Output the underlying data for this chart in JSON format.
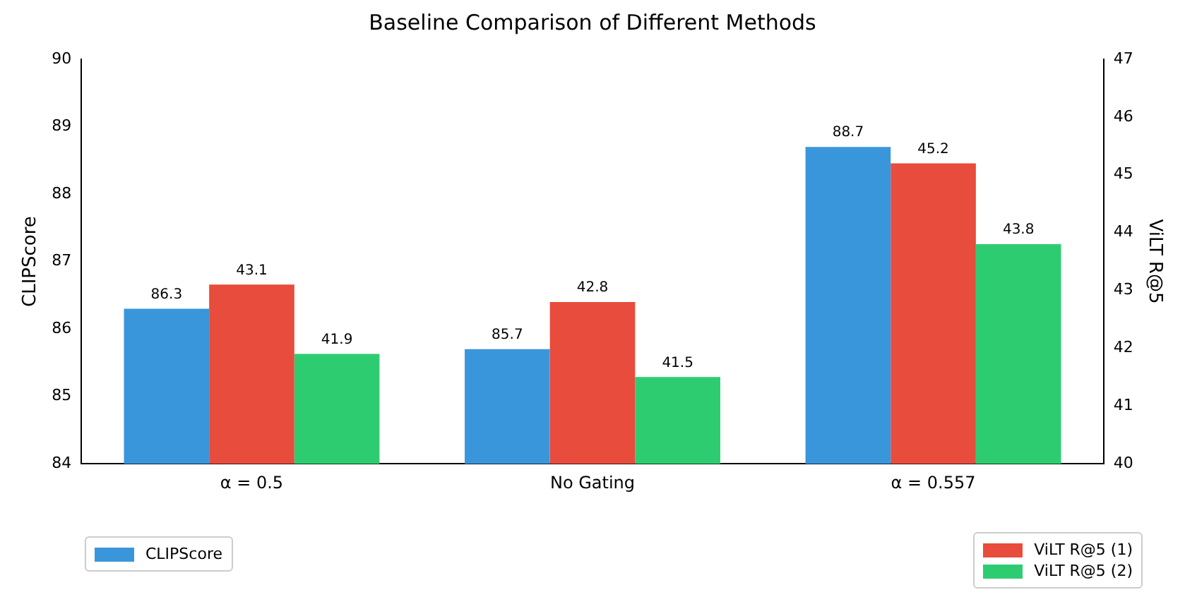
{
  "chart_data": {
    "type": "bar",
    "title": "Baseline Comparison of Different Methods",
    "ylabel": "CLIPScore",
    "y2label": "ViLT R@5",
    "categories": [
      "α = 0.5",
      "No Gating",
      "α = 0.557"
    ],
    "series": [
      {
        "name": "CLIPScore",
        "color": "#3a96db",
        "values": [
          86.3,
          85.7,
          88.7
        ]
      },
      {
        "name": "ViLT R@5 (1)",
        "color": "#e74c3c",
        "values": [
          43.1,
          42.8,
          45.2
        ],
        "axis": "y2"
      },
      {
        "name": "ViLT R@5 (2)",
        "color": "#2ecc71",
        "values": [
          41.9,
          41.5,
          43.8
        ],
        "axis": "y2"
      }
    ],
    "ylim": [
      84,
      90
    ],
    "yticks": [
      84,
      85,
      86,
      87,
      88,
      89,
      90
    ],
    "y2lim": [
      40,
      47
    ],
    "y2ticks": [
      40,
      41,
      42,
      43,
      44,
      45,
      46,
      47
    ],
    "data_labels": true,
    "grid": false,
    "legend": "bottom"
  }
}
